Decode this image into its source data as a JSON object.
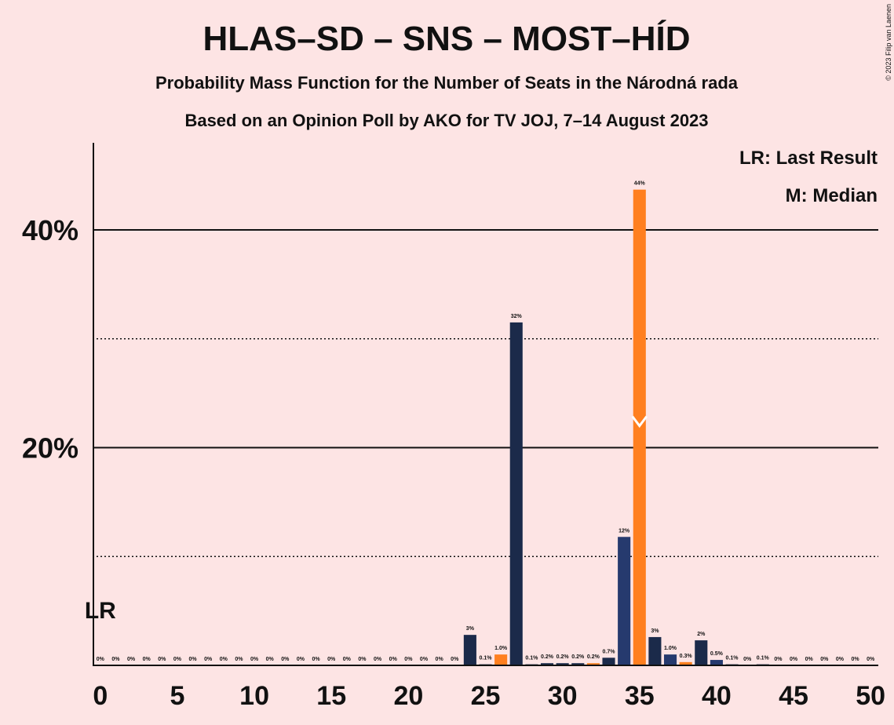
{
  "chart_data": {
    "type": "bar",
    "title": "HLAS–SD – SNS – MOST–HÍD",
    "subtitle": "Probability Mass Function for the Number of Seats in the Národná rada",
    "subtitle2": "Based on an Opinion Poll by AKO for TV JOJ, 7–14 August 2023",
    "copyright": "© 2023 Filip van Laenen",
    "legend": [
      "LR: Last Result",
      "M: Median"
    ],
    "last_result_label": "LR",
    "last_result": 0,
    "median": 35,
    "x": [
      0,
      1,
      2,
      3,
      4,
      5,
      6,
      7,
      8,
      9,
      10,
      11,
      12,
      13,
      14,
      15,
      16,
      17,
      18,
      19,
      20,
      21,
      22,
      23,
      24,
      25,
      26,
      27,
      28,
      29,
      30,
      31,
      32,
      33,
      34,
      35,
      36,
      37,
      38,
      39,
      40,
      41,
      42,
      43,
      44,
      45,
      46,
      47,
      48,
      49,
      50
    ],
    "values": [
      0,
      0,
      0,
      0,
      0,
      0,
      0,
      0,
      0,
      0,
      0,
      0,
      0,
      0,
      0,
      0,
      0,
      0,
      0,
      0,
      0,
      0,
      0,
      0,
      2.8,
      0.1,
      1.0,
      31.5,
      0.1,
      0.2,
      0.2,
      0.2,
      0.2,
      0.7,
      11.8,
      43.7,
      2.6,
      1.0,
      0.3,
      2.3,
      0.5,
      0.1,
      0,
      0.1,
      0,
      0,
      0,
      0,
      0,
      0,
      0
    ],
    "value_labels": [
      "0%",
      "0%",
      "0%",
      "0%",
      "0%",
      "0%",
      "0%",
      "0%",
      "0%",
      "0%",
      "0%",
      "0%",
      "0%",
      "0%",
      "0%",
      "0%",
      "0%",
      "0%",
      "0%",
      "0%",
      "0%",
      "0%",
      "0%",
      "0%",
      "3%",
      "0.1%",
      "1.0%",
      "32%",
      "0.1%",
      "0.2%",
      "0.2%",
      "0.2%",
      "0.2%",
      "0.7%",
      "12%",
      "44%",
      "3%",
      "1.0%",
      "0.3%",
      "2%",
      "0.5%",
      "0.1%",
      "0%",
      "0.1%",
      "0%",
      "0%",
      "0%",
      "0%",
      "0%",
      "0%",
      "0%"
    ],
    "colors": [
      "#1b2a4a",
      "#1b2a4a",
      "#1b2a4a",
      "#1b2a4a",
      "#1b2a4a",
      "#1b2a4a",
      "#1b2a4a",
      "#1b2a4a",
      "#1b2a4a",
      "#1b2a4a",
      "#1b2a4a",
      "#1b2a4a",
      "#1b2a4a",
      "#1b2a4a",
      "#1b2a4a",
      "#1b2a4a",
      "#1b2a4a",
      "#1b2a4a",
      "#1b2a4a",
      "#1b2a4a",
      "#1b2a4a",
      "#1b2a4a",
      "#1b2a4a",
      "#1b2a4a",
      "#1b2a4a",
      "#1b2a4a",
      "#ff7f1f",
      "#1b2a4a",
      "#1b2a4a",
      "#1b2a4a",
      "#1b2a4a",
      "#1b2a4a",
      "#ff7f1f",
      "#1b2a4a",
      "#263a6e",
      "#ff7f1f",
      "#1b2a4a",
      "#263a6e",
      "#ff7f1f",
      "#1b2a4a",
      "#263a6e",
      "#1b2a4a",
      "#1b2a4a",
      "#1b2a4a",
      "#1b2a4a",
      "#1b2a4a",
      "#1b2a4a",
      "#1b2a4a",
      "#1b2a4a",
      "#1b2a4a",
      "#1b2a4a"
    ],
    "xlim": [
      -0.5,
      50.5
    ],
    "xticks": [
      0,
      5,
      10,
      15,
      20,
      25,
      30,
      35,
      40,
      45,
      50
    ],
    "ylim": [
      0,
      48
    ],
    "yticks": [
      {
        "value": 20,
        "label": "20%"
      },
      {
        "value": 40,
        "label": "40%"
      }
    ],
    "minor_yticks": [
      10,
      30
    ]
  }
}
